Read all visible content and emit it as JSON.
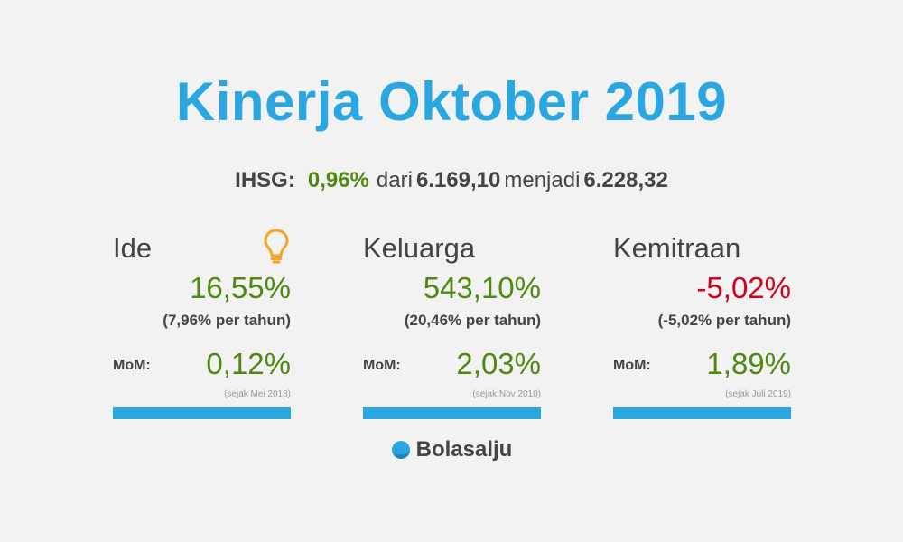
{
  "title": "Kinerja Oktober 2019",
  "ihsg": {
    "label": "IHSG:",
    "change": "0,96%",
    "from_text": "dari",
    "from_value": "6.169,10",
    "to_text": "menjadi",
    "to_value": "6.228,32"
  },
  "cards": [
    {
      "name": "Ide",
      "return": "16,55%",
      "per_year": "(7,96% per tahun)",
      "mom_label": "MoM:",
      "mom": "0,12%",
      "since": "(sejak Mei 2018)",
      "icon": "lightbulb-icon"
    },
    {
      "name": "Keluarga",
      "return": "543,10%",
      "per_year": "(20,46% per tahun)",
      "mom_label": "MoM:",
      "mom": "2,03%",
      "since": "(sejak Nov 2010)"
    },
    {
      "name": "Kemitraan",
      "return": "-5,02%",
      "per_year": "(-5,02% per tahun)",
      "mom_label": "MoM:",
      "mom": "1,89%",
      "since": "(sejak Juli 2019)"
    }
  ],
  "brand": {
    "name": "Bolasalju",
    "icon": "snowball-logo-icon"
  },
  "colors": {
    "accent": "#2aa7e0",
    "positive": "#4e8a10",
    "negative": "#d0021b",
    "bulb": "#f5a623",
    "text": "#444444",
    "background": "#f2f2f2"
  }
}
